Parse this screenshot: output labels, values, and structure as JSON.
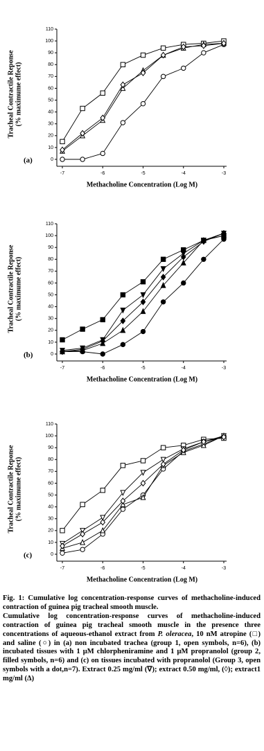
{
  "chart_data": [
    {
      "type": "line",
      "panel": "(a)",
      "xlabel": "Methacholine Concentration (Log M)",
      "ylabel": [
        "Tracheal Contractile Reponse",
        "(% maximume effect)"
      ],
      "x": [
        -7,
        -6.5,
        -6,
        -5.5,
        -5,
        -4.5,
        -4,
        -3.5,
        -3
      ],
      "xlim": [
        -7,
        -3
      ],
      "xticks": [
        -7,
        -6,
        -5,
        -4,
        -3
      ],
      "ylim": [
        0,
        110
      ],
      "yticks": [
        0,
        10,
        20,
        30,
        40,
        50,
        60,
        70,
        80,
        90,
        100,
        110
      ],
      "series": [
        {
          "marker": "square",
          "filled": false,
          "color": "#000000",
          "values": [
            15,
            43,
            56,
            80,
            88,
            94,
            97,
            98,
            100
          ]
        },
        {
          "marker": "circle",
          "filled": false,
          "color": "#000000",
          "values": [
            0,
            0,
            5,
            31,
            47,
            70,
            77,
            90,
            97
          ]
        },
        {
          "marker": "triangle",
          "filled": false,
          "color": "#000000",
          "values": [
            7,
            20,
            33,
            60,
            75,
            88,
            94,
            97,
            98
          ]
        },
        {
          "marker": "diamond",
          "filled": false,
          "color": "#000000",
          "values": [
            8,
            22,
            35,
            63,
            73,
            88,
            95,
            96,
            98
          ]
        }
      ]
    },
    {
      "type": "line",
      "panel": "(b)",
      "xlabel": "Methacholine Concentration (Log M)",
      "ylabel": [
        "Tracheal Contractile Reponse",
        "(% maximume effect)"
      ],
      "x": [
        -7,
        -6.5,
        -6,
        -5.5,
        -5,
        -4.5,
        -4,
        -3.5,
        -3
      ],
      "xlim": [
        -7,
        -3
      ],
      "xticks": [
        -7,
        -6,
        -5,
        -4,
        -3
      ],
      "ylim": [
        0,
        110
      ],
      "yticks": [
        0,
        10,
        20,
        30,
        40,
        50,
        60,
        70,
        80,
        90,
        100,
        110
      ],
      "series": [
        {
          "marker": "square",
          "filled": true,
          "color": "#000000",
          "values": [
            12,
            21,
            29,
            50,
            61,
            80,
            88,
            96,
            100
          ]
        },
        {
          "marker": "circle",
          "filled": true,
          "color": "#000000",
          "values": [
            2,
            2,
            0,
            8,
            19,
            44,
            60,
            80,
            97
          ]
        },
        {
          "marker": "triangle",
          "filled": true,
          "color": "#000000",
          "values": [
            2,
            3,
            9,
            20,
            36,
            58,
            77,
            96,
            100
          ]
        },
        {
          "marker": "down",
          "filled": true,
          "color": "#000000",
          "values": [
            3,
            5,
            12,
            37,
            50,
            72,
            85,
            96,
            102
          ]
        },
        {
          "marker": "diamond",
          "filled": true,
          "color": "#000000",
          "values": [
            2,
            4,
            11,
            28,
            44,
            65,
            82,
            95,
            102
          ]
        }
      ]
    },
    {
      "type": "line",
      "panel": "(c)",
      "xlabel": "Methacholine Concentration (Log M)",
      "ylabel": [
        "Tracheal Contractile Reponse",
        "(% maximume effect)"
      ],
      "x": [
        -7,
        -6.5,
        -6,
        -5.5,
        -5,
        -4.5,
        -4,
        -3.5,
        -3
      ],
      "xlim": [
        -7,
        -3
      ],
      "xticks": [
        -7,
        -6,
        -5,
        -4,
        -3
      ],
      "ylim": [
        0,
        110
      ],
      "yticks": [
        0,
        10,
        20,
        30,
        40,
        50,
        60,
        70,
        80,
        90,
        100,
        110
      ],
      "series": [
        {
          "marker": "square",
          "filled": false,
          "color": "#000000",
          "values": [
            20,
            42,
            54,
            75,
            79,
            90,
            92,
            97,
            98
          ]
        },
        {
          "marker": "circle",
          "filled": false,
          "color": "#000000",
          "values": [
            1,
            4,
            17,
            38,
            50,
            72,
            87,
            93,
            100
          ]
        },
        {
          "marker": "triangle",
          "filled": false,
          "color": "#000000",
          "values": [
            5,
            10,
            20,
            42,
            48,
            75,
            86,
            92,
            100
          ]
        },
        {
          "marker": "down",
          "filled": false,
          "color": "#000000",
          "values": [
            9,
            20,
            31,
            52,
            69,
            80,
            89,
            95,
            100
          ]
        },
        {
          "marker": "diamond",
          "filled": false,
          "color": "#000000",
          "values": [
            7,
            17,
            27,
            45,
            60,
            76,
            88,
            95,
            99
          ]
        }
      ]
    }
  ],
  "caption": {
    "title": "Fig. 1: Cumulative log concentration-response curves of methacholine-induced contraction of guinea pig tracheal smooth muscle.",
    "body": [
      "Cumulative log concentration-response curves of methacholine-induced contraction of guinea pig tracheal smooth muscle in the presence three concentrations of aqueous-ethanol extract from ",
      "P. oleracea",
      ", 10 nM atropine (□) and saline (○) in (a) non incubated trachea (group 1, open symbols, n=6), (b) incubated tissues with 1 μM chlorpheniramine and 1 μM propranolol (group 2, filled symbols, n=6) and (c) on tissues incubated with propranolol (Group 3, open symbols with a dot,n=7). Extract 0.25 mg/ml (∇); extract 0.50 mg/ml, (◊); extract1 mg/ml (Δ)"
    ]
  }
}
